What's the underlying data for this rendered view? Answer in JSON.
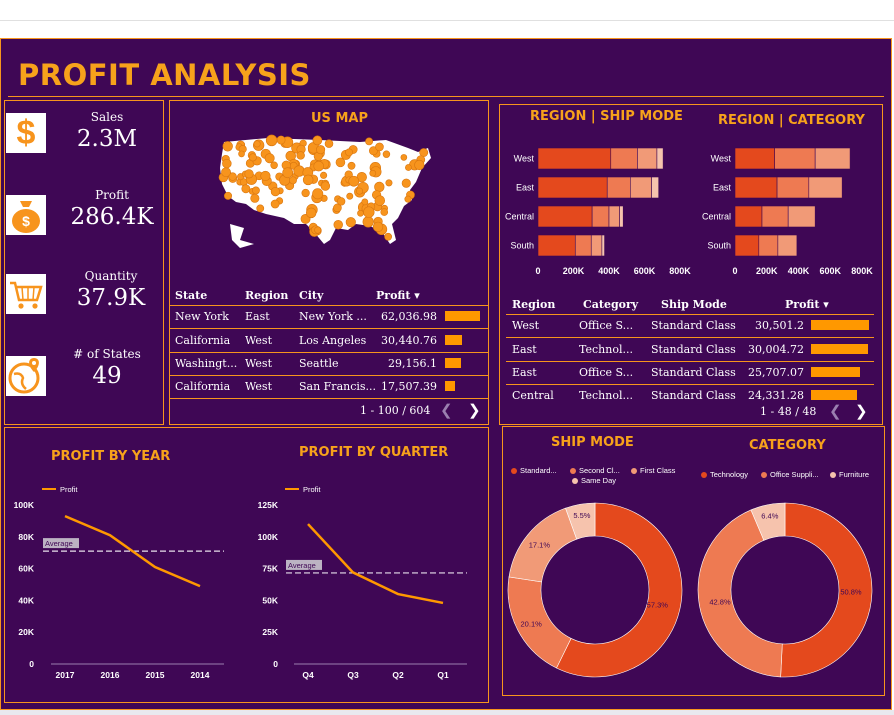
{
  "title": "PROFIT ANALYSIS",
  "kpis": [
    {
      "label": "Sales",
      "value": "2.3M",
      "icon": "dollar-icon"
    },
    {
      "label": "Profit",
      "value": "286.4K",
      "icon": "money-bag-icon"
    },
    {
      "label": "Quantity",
      "value": "37.9K",
      "icon": "shopping-cart-icon"
    },
    {
      "label": "# of States",
      "value": "49",
      "icon": "globe-pin-icon"
    }
  ],
  "us_map": {
    "title": "US MAP",
    "table": {
      "headers": [
        "State",
        "Region",
        "City",
        "Profit ▾"
      ],
      "rows": [
        {
          "state": "New York",
          "region": "East",
          "city": "New York ...",
          "profit": "62,036.98",
          "value": 62036.98
        },
        {
          "state": "California",
          "region": "West",
          "city": "Los Angeles",
          "profit": "30,440.76",
          "value": 30440.76
        },
        {
          "state": "Washingt...",
          "region": "West",
          "city": "Seattle",
          "profit": "29,156.1",
          "value": 29156.1
        },
        {
          "state": "California",
          "region": "West",
          "city": "San Francis...",
          "profit": "17,507.39",
          "value": 17507.39
        }
      ],
      "pager": "1 - 100 / 604"
    }
  },
  "region_table": {
    "headers": [
      "Region",
      "Category",
      "Ship Mode",
      "Profit ▾"
    ],
    "rows": [
      {
        "region": "West",
        "category": "Office S...",
        "ship_mode": "Standard Class",
        "profit": "30,501.2",
        "value": 30501.2
      },
      {
        "region": "East",
        "category": "Technol...",
        "ship_mode": "Standard Class",
        "profit": "30,004.72",
        "value": 30004.72
      },
      {
        "region": "East",
        "category": "Office S...",
        "ship_mode": "Standard Class",
        "profit": "25,707.07",
        "value": 25707.07
      },
      {
        "region": "Central",
        "category": "Technol...",
        "ship_mode": "Standard Class",
        "profit": "24,331.28",
        "value": 24331.28
      }
    ],
    "pager": "1 - 48 / 48"
  },
  "colors": {
    "background": "#3f0755",
    "accent": "#f7a21b",
    "border": "#f7941d",
    "bar": "#ff9800",
    "line": "#ff9800",
    "seg1": "#e4491d",
    "seg2": "#ee7a52",
    "seg3": "#f19a77",
    "seg4": "#f6c3ad"
  },
  "chart_data": [
    {
      "id": "region-ship-mode",
      "type": "bar",
      "orientation": "horizontal",
      "stacked": true,
      "title": "REGION | SHIP MODE",
      "categories": [
        "West",
        "East",
        "Central",
        "South"
      ],
      "x_ticks": [
        "0",
        "200K",
        "400K",
        "600K",
        "800K"
      ],
      "xlim": [
        0,
        800000
      ],
      "segments": [
        [
          410000,
          150000,
          110000,
          35000
        ],
        [
          390000,
          130000,
          120000,
          40000
        ],
        [
          305000,
          95000,
          60000,
          20000
        ],
        [
          210000,
          90000,
          60000,
          15000
        ]
      ]
    },
    {
      "id": "region-category",
      "type": "bar",
      "orientation": "horizontal",
      "stacked": true,
      "title": "REGION | CATEGORY",
      "categories": [
        "West",
        "East",
        "Central",
        "South"
      ],
      "x_ticks": [
        "0",
        "200K",
        "400K",
        "600K",
        "800K"
      ],
      "xlim": [
        0,
        800000
      ],
      "segments": [
        [
          250000,
          255000,
          220000
        ],
        [
          265000,
          200000,
          210000
        ],
        [
          170000,
          165000,
          170000
        ],
        [
          150000,
          120000,
          120000
        ]
      ]
    },
    {
      "id": "profit-by-year",
      "type": "line",
      "title": "PROFIT BY YEAR",
      "legend": "Profit",
      "categories": [
        "2017",
        "2016",
        "2015",
        "2014"
      ],
      "values": [
        93000,
        81000,
        61000,
        49000
      ],
      "average": 71000,
      "average_label": "Average",
      "y_ticks": [
        "0",
        "20K",
        "40K",
        "60K",
        "80K",
        "100K"
      ],
      "ylim": [
        0,
        100000
      ]
    },
    {
      "id": "profit-by-quarter",
      "type": "line",
      "title": "PROFIT BY QUARTER",
      "legend": "Profit",
      "categories": [
        "Q4",
        "Q3",
        "Q2",
        "Q1"
      ],
      "values": [
        110000,
        72000,
        55000,
        48000
      ],
      "average": 71600,
      "average_label": "Average",
      "y_ticks": [
        "0",
        "25K",
        "50K",
        "75K",
        "100K",
        "125K"
      ],
      "ylim": [
        0,
        125000
      ]
    },
    {
      "id": "ship-mode",
      "type": "pie",
      "donut": true,
      "title": "SHIP MODE",
      "labels": [
        "Standard...",
        "Second Cl...",
        "First Class",
        "Same Day"
      ],
      "values": [
        57.3,
        20.1,
        17.1,
        5.5
      ],
      "value_labels": [
        "57.3%",
        "20.1%",
        "17.1%",
        "5.5%"
      ]
    },
    {
      "id": "category",
      "type": "pie",
      "donut": true,
      "title": "CATEGORY",
      "labels": [
        "Technology",
        "Office Suppli...",
        "Furniture"
      ],
      "values": [
        50.8,
        42.8,
        6.4
      ],
      "value_labels": [
        "50.8%",
        "42.8%",
        "6.4%"
      ]
    }
  ]
}
